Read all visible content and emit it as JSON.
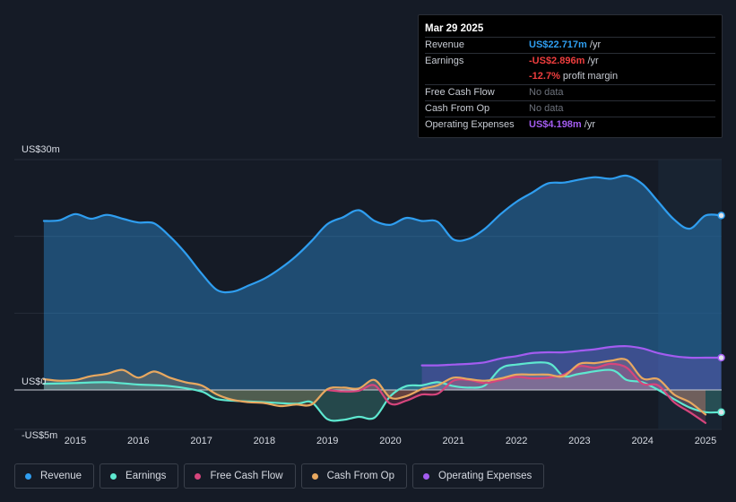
{
  "tooltip": {
    "date": "Mar 29 2025",
    "rows": {
      "revenue": {
        "label": "Revenue",
        "value": "US$22.717m",
        "unit": "/yr"
      },
      "earnings": {
        "label": "Earnings",
        "value": "-US$2.896m",
        "unit": "/yr"
      },
      "margin": {
        "value": "-12.7%",
        "text": "profit margin"
      },
      "fcf": {
        "label": "Free Cash Flow",
        "value": "No data"
      },
      "cfo": {
        "label": "Cash From Op",
        "value": "No data"
      },
      "opex": {
        "label": "Operating Expenses",
        "value": "US$4.198m",
        "unit": "/yr"
      }
    }
  },
  "legend": [
    {
      "label": "Revenue",
      "color": "#2f9ef0"
    },
    {
      "label": "Earnings",
      "color": "#5ee8d0"
    },
    {
      "label": "Free Cash Flow",
      "color": "#d6457c"
    },
    {
      "label": "Cash From Op",
      "color": "#e8a860"
    },
    {
      "label": "Operating Expenses",
      "color": "#a35cf0"
    }
  ],
  "chart_data": {
    "type": "line",
    "ylim": [
      -5,
      30
    ],
    "xlim": [
      2014.0,
      2025.25
    ],
    "y_ticks": [
      {
        "label": "US$30m",
        "value": 30
      },
      {
        "label": "US$0",
        "value": 0
      },
      {
        "label": "-US$5m",
        "value": -5
      }
    ],
    "x_ticks": [
      2015,
      2016,
      2017,
      2018,
      2019,
      2020,
      2021,
      2022,
      2023,
      2024,
      2025
    ],
    "x_tick_labels": [
      "2015",
      "2016",
      "2017",
      "2018",
      "2019",
      "2020",
      "2021",
      "2022",
      "2023",
      "2024",
      "2025"
    ],
    "forecast_start": 2024.25,
    "series": [
      {
        "name": "Revenue",
        "color": "#2f9ef0",
        "fill": true,
        "x": [
          2014.5,
          2014.75,
          2015.0,
          2015.25,
          2015.5,
          2015.75,
          2016.0,
          2016.25,
          2016.5,
          2016.75,
          2017.0,
          2017.25,
          2017.5,
          2017.75,
          2018.0,
          2018.25,
          2018.5,
          2018.75,
          2019.0,
          2019.25,
          2019.5,
          2019.75,
          2020.0,
          2020.25,
          2020.5,
          2020.75,
          2021.0,
          2021.25,
          2021.5,
          2021.75,
          2022.0,
          2022.25,
          2022.5,
          2022.75,
          2023.0,
          2023.25,
          2023.5,
          2023.75,
          2024.0,
          2024.25,
          2024.5,
          2024.75,
          2025.0,
          2025.25
        ],
        "y": [
          22.0,
          22.1,
          22.9,
          22.3,
          22.8,
          22.3,
          21.8,
          21.7,
          20.0,
          17.8,
          15.2,
          13.0,
          12.8,
          13.6,
          14.5,
          15.8,
          17.4,
          19.4,
          21.6,
          22.5,
          23.4,
          22.0,
          21.5,
          22.4,
          22.0,
          21.9,
          19.6,
          19.7,
          21.0,
          22.9,
          24.5,
          25.7,
          26.9,
          27.0,
          27.4,
          27.7,
          27.5,
          27.9,
          26.8,
          24.5,
          22.2,
          21.0,
          22.717,
          22.717
        ]
      },
      {
        "name": "Earnings",
        "color": "#5ee8d0",
        "fill": true,
        "x": [
          2014.5,
          2015.0,
          2015.5,
          2016.0,
          2016.5,
          2017.0,
          2017.25,
          2017.75,
          2018.0,
          2018.5,
          2018.75,
          2019.0,
          2019.25,
          2019.5,
          2019.75,
          2020.0,
          2020.25,
          2020.5,
          2020.75,
          2021.0,
          2021.25,
          2021.5,
          2021.75,
          2022.0,
          2022.5,
          2022.75,
          2023.0,
          2023.5,
          2023.75,
          2024.0,
          2024.25,
          2024.5,
          2024.75,
          2025.0,
          2025.25
        ],
        "y": [
          0.8,
          0.9,
          1.0,
          0.7,
          0.5,
          -0.2,
          -1.2,
          -1.5,
          -1.6,
          -1.8,
          -1.6,
          -3.8,
          -3.9,
          -3.5,
          -3.6,
          -0.8,
          0.5,
          0.6,
          1.0,
          0.5,
          0.3,
          0.6,
          2.8,
          3.3,
          3.5,
          1.8,
          2.1,
          2.6,
          1.3,
          1.0,
          0.0,
          -1.2,
          -2.3,
          -2.9,
          -2.896
        ]
      },
      {
        "name": "Free Cash Flow",
        "color": "#d6457c",
        "fill": true,
        "x": [
          2019.0,
          2019.25,
          2019.5,
          2019.75,
          2020.0,
          2020.25,
          2020.5,
          2020.75,
          2021.0,
          2021.25,
          2021.5,
          2021.75,
          2022.0,
          2022.25,
          2022.5,
          2022.75,
          2023.0,
          2023.25,
          2023.5,
          2023.75,
          2024.0,
          2024.25,
          2024.5,
          2024.75,
          2025.0
        ],
        "y": [
          0.0,
          -0.2,
          -0.1,
          0.6,
          -1.8,
          -1.4,
          -0.6,
          -0.5,
          1.2,
          1.3,
          0.9,
          1.3,
          1.7,
          1.5,
          1.6,
          2.0,
          3.1,
          2.9,
          3.4,
          2.9,
          0.8,
          0.6,
          -1.6,
          -2.9,
          -4.3
        ]
      },
      {
        "name": "Cash From Op",
        "color": "#e8a860",
        "fill": true,
        "x": [
          2014.5,
          2014.75,
          2015.0,
          2015.25,
          2015.5,
          2015.75,
          2016.0,
          2016.25,
          2016.5,
          2016.75,
          2017.0,
          2017.25,
          2017.5,
          2017.75,
          2018.0,
          2018.25,
          2018.5,
          2018.75,
          2019.0,
          2019.25,
          2019.5,
          2019.75,
          2020.0,
          2020.25,
          2020.5,
          2020.75,
          2021.0,
          2021.25,
          2021.5,
          2021.75,
          2022.0,
          2022.25,
          2022.5,
          2022.75,
          2023.0,
          2023.25,
          2023.5,
          2023.75,
          2024.0,
          2024.25,
          2024.5,
          2024.75,
          2025.0
        ],
        "y": [
          1.4,
          1.2,
          1.3,
          1.8,
          2.1,
          2.6,
          1.6,
          2.4,
          1.6,
          1.0,
          0.6,
          -0.6,
          -1.3,
          -1.6,
          -1.7,
          -2.1,
          -1.9,
          -1.9,
          0.1,
          0.3,
          0.2,
          1.3,
          -1.0,
          -0.8,
          0.1,
          0.6,
          1.6,
          1.4,
          1.2,
          1.5,
          2.0,
          2.0,
          2.0,
          1.8,
          3.4,
          3.5,
          3.8,
          3.9,
          1.5,
          1.4,
          -0.6,
          -1.6,
          -3.2
        ]
      },
      {
        "name": "Operating Expenses",
        "color": "#a35cf0",
        "fill": true,
        "x": [
          2020.5,
          2020.75,
          2021.0,
          2021.25,
          2021.5,
          2021.75,
          2022.0,
          2022.25,
          2022.5,
          2022.75,
          2023.0,
          2023.25,
          2023.5,
          2023.75,
          2024.0,
          2024.25,
          2024.5,
          2024.75,
          2025.0,
          2025.25
        ],
        "y": [
          3.2,
          3.2,
          3.3,
          3.4,
          3.6,
          4.1,
          4.4,
          4.8,
          4.9,
          4.9,
          5.1,
          5.3,
          5.6,
          5.7,
          5.4,
          4.8,
          4.4,
          4.2,
          4.2,
          4.198
        ]
      }
    ]
  }
}
